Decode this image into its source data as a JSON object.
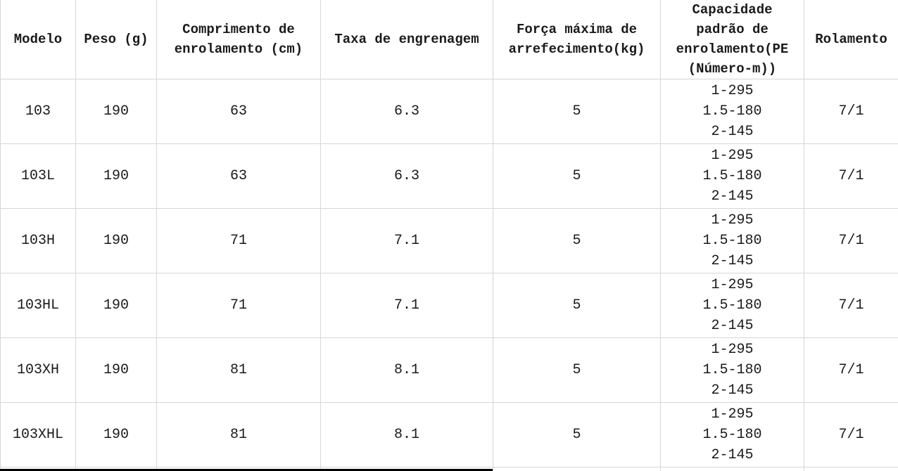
{
  "table": {
    "columns": [
      {
        "id": "modelo",
        "label": "Modelo"
      },
      {
        "id": "peso",
        "label": "Peso (g)"
      },
      {
        "id": "comprimento",
        "label": "Comprimento de\nenrolamento (cm)"
      },
      {
        "id": "taxa",
        "label": "Taxa de engrenagem"
      },
      {
        "id": "forca",
        "label": "Força máxima de\narrefecimento(kg)"
      },
      {
        "id": "capacidade",
        "label": "Capacidade\npadrão de\nenrolamento(PE\n(Número-m))"
      },
      {
        "id": "rolamento",
        "label": "Rolamento"
      }
    ],
    "rows": [
      [
        "103",
        "190",
        "63",
        "6.3",
        "5",
        "1-295\n1.5-180\n2-145",
        "7/1"
      ],
      [
        "103L",
        "190",
        "63",
        "6.3",
        "5",
        "1-295\n1.5-180\n2-145",
        "7/1"
      ],
      [
        "103H",
        "190",
        "71",
        "7.1",
        "5",
        "1-295\n1.5-180\n2-145",
        "7/1"
      ],
      [
        "103HL",
        "190",
        "71",
        "7.1",
        "5",
        "1-295\n1.5-180\n2-145",
        "7/1"
      ],
      [
        "103XH",
        "190",
        "81",
        "8.1",
        "5",
        "1-295\n1.5-180\n2-145",
        "7/1"
      ],
      [
        "103XHL",
        "190",
        "81",
        "8.1",
        "5",
        "1-295\n1.5-180\n2-145",
        "7/1"
      ]
    ]
  },
  "colors": {
    "background": "#ffffff",
    "grid_line": "#d6d6d6",
    "text": "#1a1a1a",
    "bottom_bar": "#000000"
  }
}
